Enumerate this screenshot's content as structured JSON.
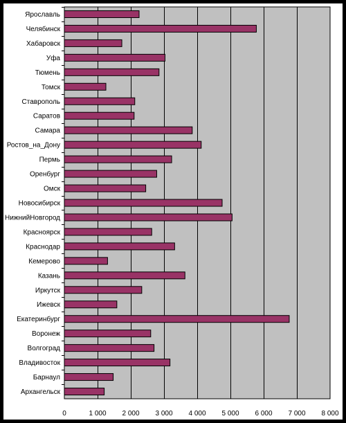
{
  "chart_data": {
    "type": "bar",
    "orientation": "horizontal",
    "title": "",
    "xlabel": "",
    "ylabel": "",
    "grid": true,
    "legend": "none",
    "xlim": [
      0,
      8000
    ],
    "x_tick_labels": [
      "0",
      "1 000",
      "2 000",
      "3 000",
      "4 000",
      "5 000",
      "6 000",
      "7 000",
      "8 000"
    ],
    "x_ticks": [
      0,
      1000,
      2000,
      3000,
      4000,
      5000,
      6000,
      7000,
      8000
    ],
    "categories": [
      "Ярославль",
      "Челябинск",
      "Хабаровск",
      "Уфа",
      "Тюмень",
      "Томск",
      "Ставрополь",
      "Саратов",
      "Самара",
      "Ростов_на_Дону",
      "Пермь",
      "Оренбург",
      "Омск",
      "Новосибирск",
      "НижнийНовгород",
      "Красноярск",
      "Краснодар",
      "Кемерово",
      "Казань",
      "Иркутск",
      "Ижевск",
      "Екатеринбург",
      "Воронеж",
      "Волгоград",
      "Владивосток",
      "Барнаул",
      "Архангельск"
    ],
    "values": [
      2250,
      5780,
      1730,
      3030,
      2850,
      1250,
      2120,
      2100,
      3850,
      4120,
      3230,
      2780,
      2450,
      4750,
      5050,
      2630,
      3320,
      1300,
      3630,
      2330,
      1580,
      6770,
      2600,
      2700,
      3180,
      1470,
      1200
    ],
    "colors": {
      "bar_fill": "#993366",
      "bar_stroke": "#000000",
      "plot_background": "#c0c0c0",
      "grid": "#000000"
    }
  }
}
